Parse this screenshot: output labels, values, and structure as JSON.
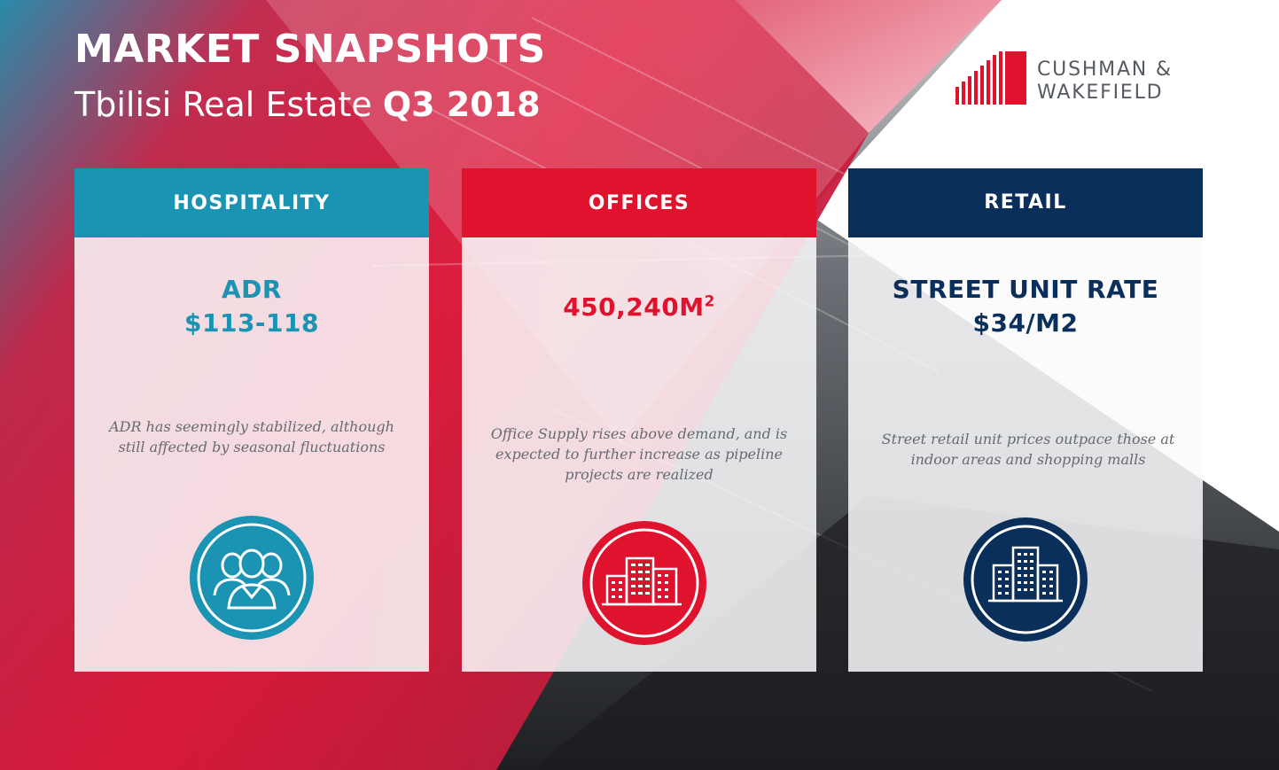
{
  "header": {
    "title": "MARKET SNAPSHOTS",
    "subtitle_prefix": "Tbilisi Real Estate",
    "subtitle_period": "Q3 2018"
  },
  "logo": {
    "line1": "CUSHMAN &",
    "line2": "WAKEFIELD",
    "icon": "building-bars-logo-icon"
  },
  "colors": {
    "hospitality": "#1b93b3",
    "offices": "#e0132f",
    "retail": "#0b2f5b"
  },
  "cards": [
    {
      "header": "HOSPITALITY",
      "stat_line1": "ADR",
      "stat_line2": "$113-118",
      "description": "ADR has seemingly stabilized, although still affected by seasonal fluctuations",
      "icon": "people-group-icon"
    },
    {
      "header": "OFFICES",
      "stat_line1": "450,240M",
      "stat_sup": "2",
      "description": "Office Supply rises above demand, and is expected to further increase as pipeline projects are realized",
      "icon": "office-buildings-icon"
    },
    {
      "header": "RETAIL",
      "stat_line1": "STREET UNIT RATE",
      "stat_line2": "$34/M2",
      "description": "Street retail unit prices outpace those at indoor areas and shopping malls",
      "icon": "tower-buildings-icon"
    }
  ]
}
